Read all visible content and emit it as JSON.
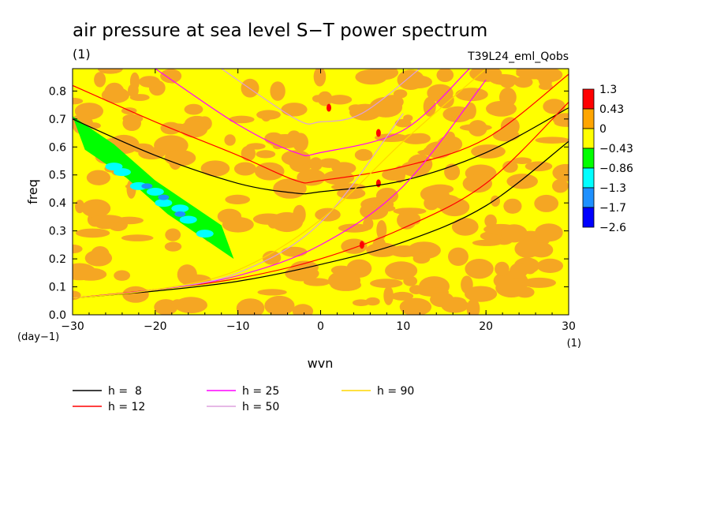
{
  "chart_data": {
    "type": "heatmap",
    "title": "air pressure at sea level S−T power spectrum",
    "title_units": "(1)",
    "run_label": "T39L24_eml_Qobs",
    "xlabel": "wvn",
    "xunits": "(1)",
    "ylabel": "freq",
    "yunits": "(day−1)",
    "xlim": [
      -30,
      30
    ],
    "ylim": [
      0,
      0.88
    ],
    "xticks": [
      {
        "value": -30,
        "label": "−30"
      },
      {
        "value": -20,
        "label": "−20"
      },
      {
        "value": -10,
        "label": "−10"
      },
      {
        "value": 0,
        "label": "0"
      },
      {
        "value": 10,
        "label": "10"
      },
      {
        "value": 20,
        "label": "20"
      },
      {
        "value": 30,
        "label": "30"
      }
    ],
    "yticks": [
      {
        "value": 0,
        "label": "0.0"
      },
      {
        "value": 0.1,
        "label": "0.1"
      },
      {
        "value": 0.2,
        "label": "0.2"
      },
      {
        "value": 0.3,
        "label": "0.3"
      },
      {
        "value": 0.4,
        "label": "0.4"
      },
      {
        "value": 0.5,
        "label": "0.5"
      },
      {
        "value": 0.6,
        "label": "0.6"
      },
      {
        "value": 0.7,
        "label": "0.7"
      },
      {
        "value": 0.8,
        "label": "0.8"
      }
    ],
    "colorbar": {
      "levels": [
        "1.3",
        "0.43",
        "0",
        "−0.43",
        "−0.86",
        "−1.3",
        "−1.7",
        "−2.6"
      ],
      "colors": [
        "#ff0000",
        "#ffa500",
        "#ffff00",
        "#00ff00",
        "#00ffff",
        "#1e90ff",
        "#0000ff"
      ]
    },
    "background_color": "#ffff00",
    "noise_color": "#f5a623",
    "series": [
      {
        "name": "h =  8",
        "color": "#000000",
        "symmetric": {
          "x": [
            -30,
            -20,
            -10,
            -3,
            0,
            10,
            20,
            30
          ],
          "y": [
            0.7,
            0.57,
            0.47,
            0.435,
            0.44,
            0.48,
            0.58,
            0.74
          ]
        },
        "kelvin": {
          "x": [
            -30,
            -20,
            -10,
            0,
            10,
            20,
            30
          ],
          "y": [
            0.06,
            0.085,
            0.12,
            0.18,
            0.26,
            0.39,
            0.62
          ]
        }
      },
      {
        "name": "h = 12",
        "color": "#ff0000",
        "symmetric": {
          "x": [
            -30,
            -20,
            -10,
            -3,
            0,
            10,
            20,
            30
          ],
          "y": [
            0.82,
            0.69,
            0.57,
            0.48,
            0.48,
            0.53,
            0.63,
            0.86
          ]
        },
        "kelvin": {
          "x": [
            -30,
            -20,
            -10,
            0,
            10,
            20,
            30
          ],
          "y": [
            0.06,
            0.09,
            0.13,
            0.2,
            0.31,
            0.47,
            0.76
          ]
        }
      },
      {
        "name": "h = 25",
        "color": "#ff00ff",
        "symmetric": {
          "x": [
            -20,
            -10,
            -3,
            0,
            10,
            18
          ],
          "y": [
            0.88,
            0.68,
            0.58,
            0.58,
            0.66,
            0.88
          ]
        },
        "kelvin": {
          "x": [
            -30,
            -20,
            -10,
            0,
            10,
            20
          ],
          "y": [
            0.06,
            0.09,
            0.14,
            0.25,
            0.46,
            0.84
          ]
        }
      },
      {
        "name": "h = 50",
        "color": "#dda0dd",
        "symmetric": {
          "x": [
            -12,
            -3,
            0,
            5,
            12
          ],
          "y": [
            0.88,
            0.7,
            0.69,
            0.72,
            0.88
          ]
        },
        "kelvin": {
          "x": [
            -30,
            -20,
            -10,
            0,
            10
          ],
          "y": [
            0.06,
            0.09,
            0.15,
            0.33,
            0.72
          ]
        }
      },
      {
        "name": "h = 90",
        "color": "#ffd700",
        "symmetric": {
          "x": [],
          "y": []
        },
        "kelvin": {
          "x": [
            -30,
            -20,
            -10,
            0,
            10,
            20
          ],
          "y": [
            0.06,
            0.09,
            0.16,
            0.34,
            0.62,
            0.88
          ]
        }
      }
    ],
    "negative_band": {
      "x": [
        -30,
        -25,
        -20,
        -15,
        -12
      ],
      "y": [
        0.66,
        0.56,
        0.43,
        0.33,
        0.27
      ],
      "color": "#00ff00"
    },
    "strong_negative_cells": [
      {
        "x": -22,
        "y": 0.46
      },
      {
        "x": -20,
        "y": 0.44
      },
      {
        "x": -19,
        "y": 0.4
      },
      {
        "x": -17,
        "y": 0.38
      },
      {
        "x": -16,
        "y": 0.34
      },
      {
        "x": -14,
        "y": 0.29
      },
      {
        "x": -25,
        "y": 0.53
      },
      {
        "x": -24,
        "y": 0.51
      }
    ],
    "strongest_negative_cells": [
      {
        "x": -21,
        "y": 0.46
      },
      {
        "x": -19,
        "y": 0.42
      },
      {
        "x": -17,
        "y": 0.36
      }
    ],
    "positive_peaks": [
      {
        "x": 7,
        "y": 0.65
      },
      {
        "x": 7,
        "y": 0.47
      },
      {
        "x": 1,
        "y": 0.74
      },
      {
        "x": 5,
        "y": 0.25
      }
    ]
  }
}
